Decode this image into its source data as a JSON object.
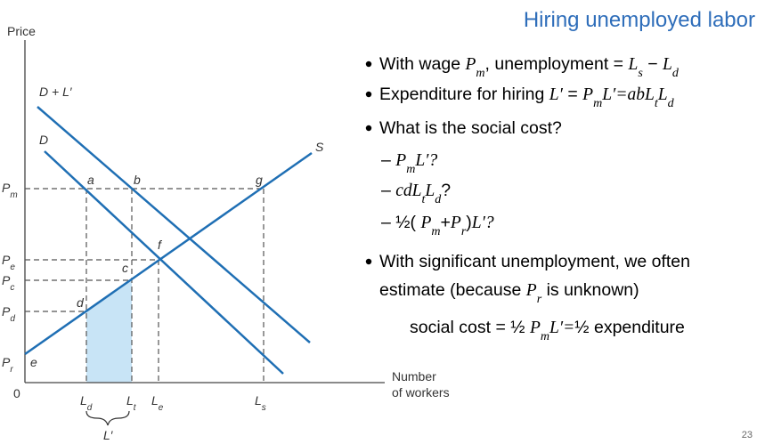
{
  "header": {
    "title": "Hiring unemployed labor"
  },
  "diagram": {
    "y_axis_label": "Price",
    "x_axis_label": [
      "Number",
      "of workers"
    ],
    "origin": "0",
    "curve_labels": [
      [
        {
          "t": "D + L′",
          "s": "n"
        }
      ],
      [
        {
          "t": "D",
          "s": "n"
        }
      ],
      [
        {
          "t": "S",
          "s": "n"
        }
      ]
    ],
    "points": [
      "a",
      "b",
      "g",
      "f",
      "c",
      "d",
      "e"
    ],
    "price_labels": [
      [
        {
          "t": "P",
          "s": "n"
        },
        {
          "t": "m",
          "s": "sub"
        }
      ],
      [
        {
          "t": "P",
          "s": "n"
        },
        {
          "t": "e",
          "s": "sub"
        }
      ],
      [
        {
          "t": "P",
          "s": "n"
        },
        {
          "t": "c",
          "s": "sub"
        }
      ],
      [
        {
          "t": "P",
          "s": "n"
        },
        {
          "t": "d",
          "s": "sub"
        }
      ],
      [
        {
          "t": "P",
          "s": "n"
        },
        {
          "t": "r",
          "s": "sub"
        }
      ]
    ],
    "quantity_labels": [
      [
        {
          "t": "L",
          "s": "n"
        },
        {
          "t": "d",
          "s": "sub"
        }
      ],
      [
        {
          "t": "L",
          "s": "n"
        },
        {
          "t": "t",
          "s": "sub"
        }
      ],
      [
        {
          "t": "L",
          "s": "n"
        },
        {
          "t": "e",
          "s": "sub"
        }
      ],
      [
        {
          "t": "L",
          "s": "n"
        },
        {
          "t": "s",
          "s": "sub"
        }
      ]
    ],
    "brace_label": "L′"
  },
  "bullets": [
    {
      "level": 1,
      "lines": [
        [
          {
            "t": "With wage ",
            "s": "n"
          },
          {
            "t": "P",
            "s": "i"
          },
          {
            "t": "m",
            "s": "sub"
          },
          {
            "t": ", unemployment = ",
            "s": "n"
          },
          {
            "t": "L",
            "s": "i"
          },
          {
            "t": "s",
            "s": "sub"
          },
          {
            "t": " − ",
            "s": "n"
          },
          {
            "t": "L",
            "s": "i"
          },
          {
            "t": "d",
            "s": "sub"
          }
        ]
      ]
    },
    {
      "level": 1,
      "lines": [
        [
          {
            "t": "Expenditure for hiring ",
            "s": "n"
          },
          {
            "t": "L′",
            "s": "i"
          },
          {
            "t": " = ",
            "s": "n"
          },
          {
            "t": "P",
            "s": "i"
          },
          {
            "t": "m",
            "s": "sub"
          },
          {
            "t": "L′=abL",
            "s": "i"
          },
          {
            "t": "t",
            "s": "sub"
          },
          {
            "t": "L",
            "s": "i"
          },
          {
            "t": "d",
            "s": "sub"
          }
        ]
      ]
    },
    {
      "level": 1,
      "lines": [
        [
          {
            "t": "What is the social cost?",
            "s": "n"
          }
        ]
      ]
    },
    {
      "level": 2,
      "lines": [
        [
          {
            "t": "– ",
            "s": "n"
          },
          {
            "t": "P",
            "s": "i"
          },
          {
            "t": "m",
            "s": "sub"
          },
          {
            "t": "L′?",
            "s": "i"
          }
        ]
      ]
    },
    {
      "level": 2,
      "lines": [
        [
          {
            "t": "– ",
            "s": "n"
          },
          {
            "t": "cdL",
            "s": "i"
          },
          {
            "t": "t",
            "s": "sub"
          },
          {
            "t": "L",
            "s": "i"
          },
          {
            "t": "d",
            "s": "sub"
          },
          {
            "t": "?",
            "s": "n"
          }
        ]
      ]
    },
    {
      "level": 2,
      "lines": [
        [
          {
            "t": "– ",
            "s": "n"
          },
          {
            "t": "½",
            "s": "n"
          },
          {
            "t": "( ",
            "s": "n"
          },
          {
            "t": "P",
            "s": "i"
          },
          {
            "t": "m",
            "s": "sub"
          },
          {
            "t": "+",
            "s": "n"
          },
          {
            "t": "P",
            "s": "i"
          },
          {
            "t": "r",
            "s": "sub"
          },
          {
            "t": ")",
            "s": "n"
          },
          {
            "t": "L′?",
            "s": "i"
          }
        ]
      ]
    },
    {
      "level": 1,
      "lines": [
        [
          {
            "t": "With significant unemployment, we often",
            "s": "n"
          }
        ],
        [
          {
            "t": "estimate (because ",
            "s": "n"
          },
          {
            "t": "P",
            "s": "i"
          },
          {
            "t": "r",
            "s": "sub"
          },
          {
            "t": " is unknown)",
            "s": "n"
          }
        ]
      ]
    },
    {
      "level": 0,
      "lines": [
        [
          {
            "t": "social cost = ",
            "s": "n"
          },
          {
            "t": "½",
            "s": "n"
          },
          {
            "t": " ",
            "s": "n"
          },
          {
            "t": "P",
            "s": "i"
          },
          {
            "t": "m",
            "s": "sub"
          },
          {
            "t": "L′=",
            "s": "i"
          },
          {
            "t": "½",
            "s": "n"
          },
          {
            "t": " expenditure",
            "s": "n"
          }
        ]
      ]
    }
  ],
  "page_number": "23"
}
